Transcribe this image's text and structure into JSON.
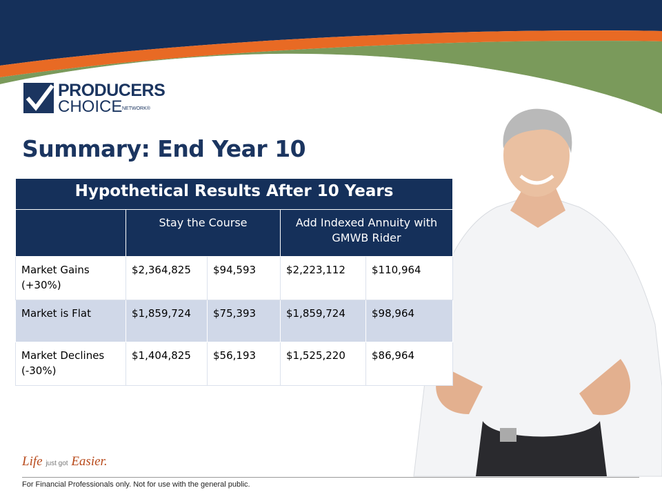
{
  "logo": {
    "line1": "PRODUCERS",
    "line2": "CHOICE",
    "line3": "NETWORK®"
  },
  "title": "Summary: End Year 10",
  "table": {
    "title": "Hypothetical Results After 10 Years",
    "headers": [
      "Stay the Course",
      "Add Indexed Annuity with GMWB Rider"
    ],
    "rows": [
      [
        "Market Gains (+30%)",
        "$2,364,825",
        "$94,593",
        "$2,223,112",
        "$110,964"
      ],
      [
        "Market is Flat",
        "$1,859,724",
        "$75,393",
        "$1,859,724",
        "$98,964"
      ],
      [
        "Market Declines (-30%)",
        "$1,404,825",
        "$56,193",
        "$1,525,220",
        "$86,964"
      ]
    ]
  },
  "tagline": {
    "life": "Life",
    "just": "just got",
    "easier": "Easier."
  },
  "footer": "For Financial Professionals only. Not for use with the general public."
}
